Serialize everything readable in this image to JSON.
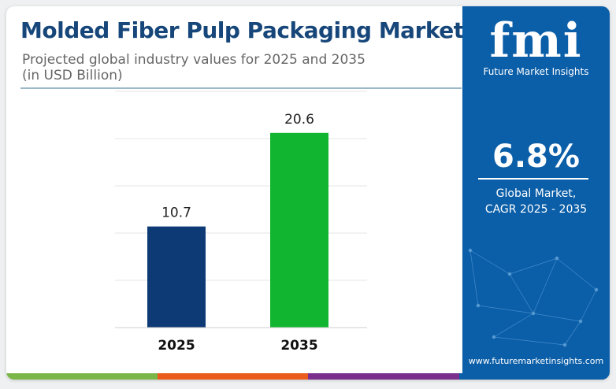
{
  "header": {
    "title": "Molded Fiber Pulp Packaging Market",
    "subtitle_line1": "Projected global industry values for 2025 and 2035",
    "subtitle_line2": "(in USD Billion)"
  },
  "sidebar": {
    "logo_text": "fmi",
    "logo_subtitle": "Future Market Insights",
    "cagr_value": "6.8%",
    "cagr_label_line1": "Global Market,",
    "cagr_label_line2": "CAGR 2025 - 2035",
    "website": "www.futuremarketinsights.com",
    "brand_color": "#0b5ea8"
  },
  "chart_data": {
    "type": "bar",
    "title": "Molded Fiber Pulp Packaging Market",
    "categories": [
      "2025",
      "2035"
    ],
    "values": [
      10.7,
      20.6
    ],
    "value_labels": [
      "10.7",
      "20.6"
    ],
    "colors": [
      "#0d3a75",
      "#12b530"
    ],
    "ylim": [
      0,
      25
    ],
    "grid": true,
    "legend": "none"
  },
  "footer": {
    "stripe_colors": [
      "#7ab648",
      "#ea5b1c",
      "#7a2f8c",
      "#0b5ea8"
    ]
  }
}
